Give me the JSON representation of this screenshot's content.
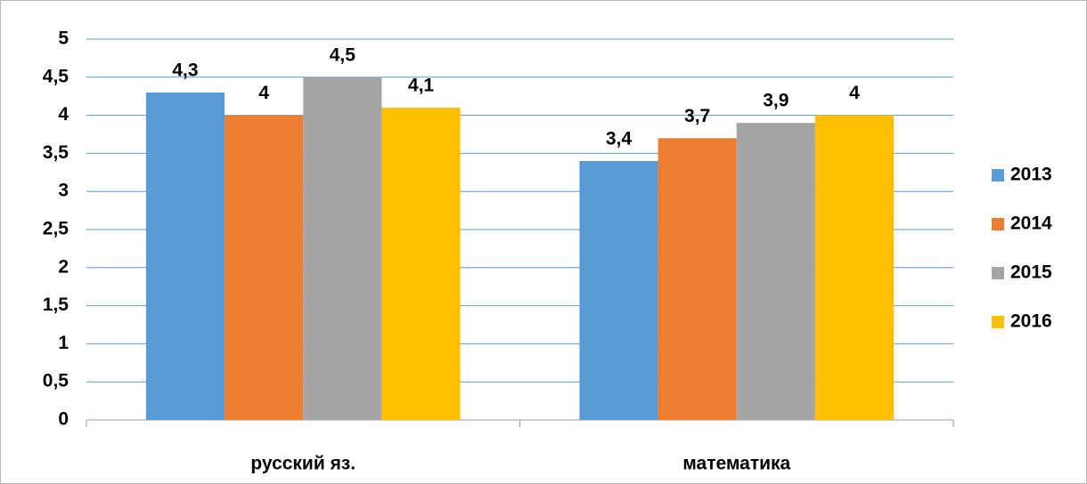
{
  "chart_data": {
    "type": "bar",
    "categories": [
      "русский яз.",
      "математика"
    ],
    "series": [
      {
        "name": "2013",
        "color": "#5b9bd5",
        "values": [
          4.3,
          3.4
        ],
        "value_labels": [
          "4,3",
          "3,4"
        ]
      },
      {
        "name": "2014",
        "color": "#ed7d31",
        "values": [
          4,
          3.7
        ],
        "value_labels": [
          "4",
          "3,7"
        ]
      },
      {
        "name": "2015",
        "color": "#a5a5a5",
        "values": [
          4.5,
          3.9
        ],
        "value_labels": [
          "4,5",
          "3,9"
        ]
      },
      {
        "name": "2016",
        "color": "#ffc000",
        "values": [
          4.1,
          4
        ],
        "value_labels": [
          "4,1",
          "4"
        ]
      }
    ],
    "ylim": [
      0,
      5
    ],
    "yticks": [
      0,
      {
        "value": 0.5,
        "label": "0,5"
      },
      1,
      {
        "value": 1.5,
        "label": "1,5"
      },
      2,
      {
        "value": 2.5,
        "label": "2,5"
      },
      3,
      {
        "value": 3.5,
        "label": "3,5"
      },
      4,
      {
        "value": 4.5,
        "label": "4,5"
      },
      5
    ],
    "grid": true,
    "legend": "right"
  }
}
